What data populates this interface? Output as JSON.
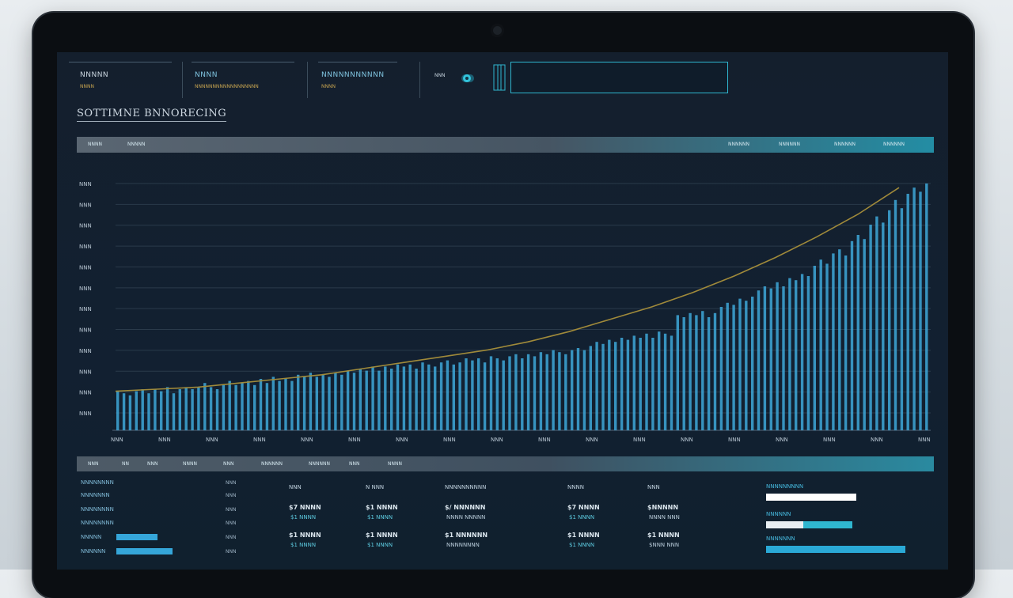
{
  "header": {
    "blocks": [
      {
        "name": "NNNNN",
        "sub": "NNNN"
      },
      {
        "name": "NNNN",
        "sub": "NNNNNNNNNNNNNNNNNN"
      },
      {
        "name": "NNNNNNNNNNN",
        "sub": "NNNN"
      }
    ],
    "user_label": "NNN"
  },
  "page_title": "SOTTIMNE BNNORECING",
  "toolbar": {
    "left": [
      "NNNN",
      "NNNNN"
    ],
    "right": [
      "NNNNNN",
      "NNNNNN",
      "NNNNNN",
      "NNNNNN"
    ]
  },
  "colors": {
    "bar": "#3ea8d8",
    "trend": "#a08a3a",
    "accent": "#2fb6cf"
  },
  "chart_data": {
    "type": "bar",
    "y_tick_labels": [
      "NNN",
      "NNN",
      "NNN",
      "NNN",
      "NNN",
      "NNN",
      "NNN",
      "NNN",
      "NNN",
      "NNN",
      "NNN",
      "NNN"
    ],
    "x_tick_labels": [
      "NNN",
      "NNN",
      "NNN",
      "NNN",
      "NNN",
      "NNN",
      "NNN",
      "NNN",
      "NNN",
      "NNN",
      "NNN",
      "NNN",
      "NNN",
      "NNN",
      "NNN",
      "NNN",
      "NNN",
      "NNN"
    ],
    "ylim": [
      0,
      12
    ],
    "values": [
      1.9,
      1.8,
      1.7,
      1.9,
      2.0,
      1.8,
      2.0,
      1.9,
      2.1,
      1.8,
      2.0,
      2.1,
      2.0,
      2.1,
      2.3,
      2.1,
      2.0,
      2.2,
      2.4,
      2.2,
      2.3,
      2.4,
      2.2,
      2.5,
      2.3,
      2.6,
      2.4,
      2.5,
      2.4,
      2.7,
      2.6,
      2.8,
      2.6,
      2.7,
      2.6,
      2.8,
      2.7,
      2.9,
      2.8,
      3.0,
      2.9,
      3.1,
      2.9,
      3.1,
      3.0,
      3.2,
      3.1,
      3.2,
      3.0,
      3.3,
      3.2,
      3.1,
      3.3,
      3.4,
      3.2,
      3.3,
      3.5,
      3.4,
      3.5,
      3.3,
      3.6,
      3.5,
      3.4,
      3.6,
      3.7,
      3.5,
      3.7,
      3.6,
      3.8,
      3.7,
      3.9,
      3.8,
      3.7,
      3.9,
      4.0,
      3.9,
      4.1,
      4.3,
      4.2,
      4.4,
      4.3,
      4.5,
      4.4,
      4.6,
      4.5,
      4.7,
      4.5,
      4.8,
      4.7,
      4.6,
      5.6,
      5.5,
      5.7,
      5.6,
      5.8,
      5.5,
      5.7,
      6.0,
      6.2,
      6.1,
      6.4,
      6.3,
      6.5,
      6.8,
      7.0,
      6.9,
      7.2,
      7.0,
      7.4,
      7.3,
      7.6,
      7.5,
      8.0,
      8.3,
      8.1,
      8.6,
      8.8,
      8.5,
      9.2,
      9.5,
      9.3,
      10.0,
      10.4,
      10.1,
      10.7,
      11.2,
      10.8,
      11.5,
      11.8,
      11.6,
      12.0
    ],
    "trend": [
      1.9,
      2.0,
      2.1,
      2.3,
      2.5,
      2.7,
      3.0,
      3.3,
      3.6,
      3.9,
      4.3,
      4.8,
      5.4,
      6.0,
      6.7,
      7.5,
      8.4,
      9.4,
      10.5,
      11.8
    ],
    "grid": true,
    "legend": "none"
  },
  "tabs": [
    "NNN",
    "NN",
    "NNN",
    "NNNN",
    "NNN",
    "NNNNNN",
    "NNNNNN",
    "NNN",
    "NNNN"
  ],
  "sidebar": [
    {
      "label": "NNNNNNNN",
      "value": "NNN",
      "bar": 0
    },
    {
      "label": "NNNNNNN",
      "value": "NNN",
      "bar": 0
    },
    {
      "label": "NNNNNNNN",
      "value": "NNN",
      "bar": 0
    },
    {
      "label": "NNNNNNNN",
      "value": "NNN",
      "bar": 0
    },
    {
      "label": "NNNNN",
      "value": "NNN",
      "bar": 0.45
    },
    {
      "label": "NNNNNN",
      "value": "NNN",
      "bar": 0.62
    }
  ],
  "table": {
    "columns": [
      {
        "header": "NNN",
        "rows": [
          [
            "$7 NNNN",
            "$1 NNNN"
          ],
          [
            "$1 NNNN",
            "$1 NNNN"
          ]
        ]
      },
      {
        "header": "N NNN",
        "rows": [
          [
            "$1 NNNN",
            "$1 NNNN"
          ],
          [
            "$1 NNNN",
            "$1 NNNN"
          ]
        ]
      },
      {
        "header": "NNNNNNNNNN",
        "rows": [
          [
            "$/ NNNNNN",
            "NNNN NNNNN"
          ],
          [
            "$1 NNNNNN",
            "NNNNNNNN"
          ]
        ]
      },
      {
        "header": "NNNN",
        "rows": [
          [
            "$7 NNNN",
            "$1 NNNN"
          ],
          [
            "$1 NNNN",
            "$1 NNNN"
          ]
        ]
      },
      {
        "header": "NNN",
        "rows": [
          [
            "$NNNNN",
            "NNNN NNN"
          ],
          [
            "$1 NNNN",
            "$NNN NNN"
          ]
        ]
      }
    ]
  },
  "progress": [
    {
      "label": "NNNNNNNNN",
      "value": 0.64,
      "color": "#ffffff",
      "track": "#ffffff"
    },
    {
      "label": "NNNNNN",
      "value": 0.26,
      "color": "#e8eef2",
      "track": "#2fb6cf"
    },
    {
      "label": "NNNNNNN",
      "value": 0.98,
      "color": "#2aa9d6",
      "track": "#2aa9d6"
    }
  ]
}
